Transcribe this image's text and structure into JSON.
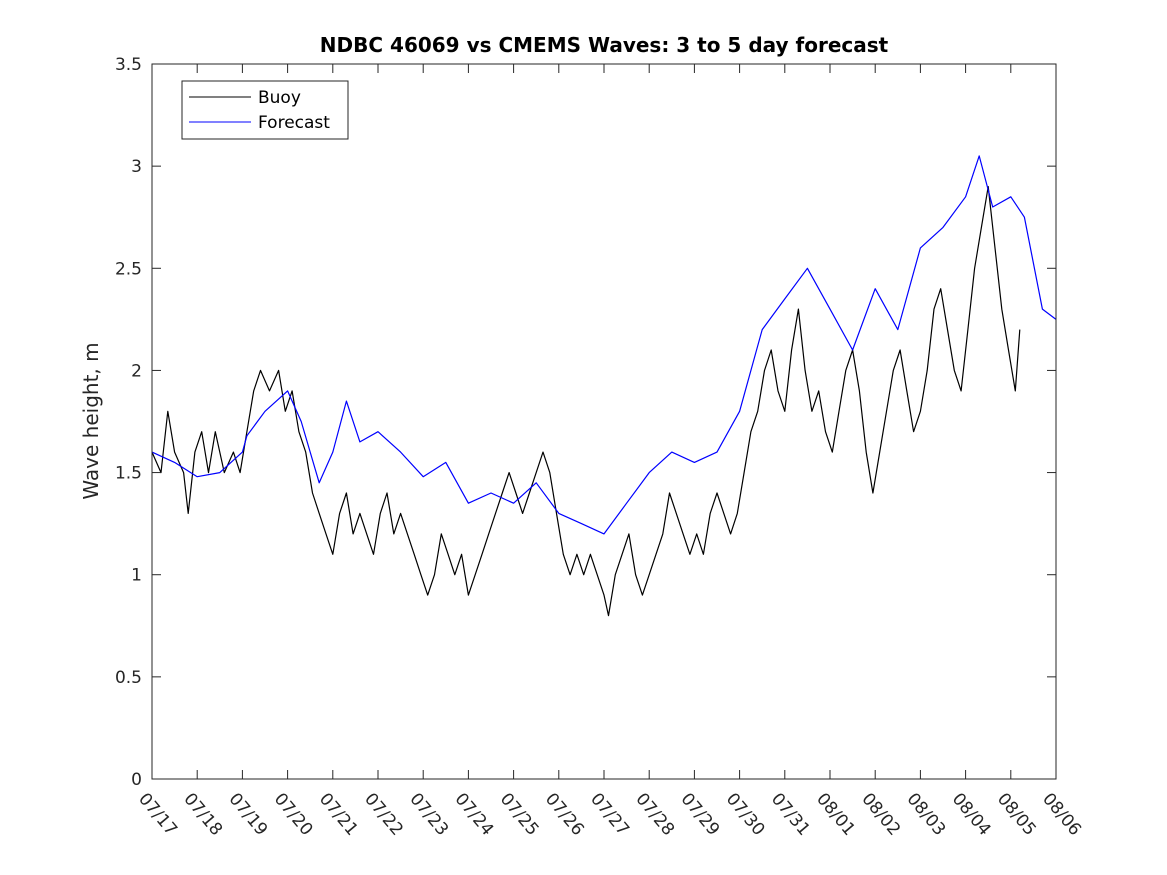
{
  "chart_data": {
    "type": "line",
    "title": "NDBC 46069 vs CMEMS Waves: 3 to 5 day forecast",
    "xlabel": "",
    "ylabel": "Wave height, m",
    "x_ticks": [
      "07/17",
      "07/18",
      "07/19",
      "07/20",
      "07/21",
      "07/22",
      "07/23",
      "07/24",
      "07/25",
      "07/26",
      "07/27",
      "07/28",
      "07/29",
      "07/30",
      "07/31",
      "08/01",
      "08/02",
      "08/03",
      "08/04",
      "08/05",
      "08/06"
    ],
    "y_ticks": [
      "0",
      "0.5",
      "1",
      "1.5",
      "2",
      "2.5",
      "3",
      "3.5"
    ],
    "xlim_days": [
      0,
      20
    ],
    "ylim": [
      0,
      3.5
    ],
    "grid": false,
    "legend": {
      "placement": "top-left",
      "entries": [
        {
          "name": "Buoy",
          "color": "#000000"
        },
        {
          "name": "Forecast",
          "color": "#0000ff"
        }
      ]
    },
    "series": [
      {
        "name": "Buoy",
        "color": "#000000",
        "points": [
          [
            0.0,
            1.6
          ],
          [
            0.2,
            1.5
          ],
          [
            0.35,
            1.8
          ],
          [
            0.5,
            1.6
          ],
          [
            0.7,
            1.5
          ],
          [
            0.8,
            1.3
          ],
          [
            0.95,
            1.6
          ],
          [
            1.1,
            1.7
          ],
          [
            1.25,
            1.5
          ],
          [
            1.4,
            1.7
          ],
          [
            1.6,
            1.5
          ],
          [
            1.8,
            1.6
          ],
          [
            1.95,
            1.5
          ],
          [
            2.1,
            1.7
          ],
          [
            2.25,
            1.9
          ],
          [
            2.4,
            2.0
          ],
          [
            2.6,
            1.9
          ],
          [
            2.8,
            2.0
          ],
          [
            2.95,
            1.8
          ],
          [
            3.1,
            1.9
          ],
          [
            3.25,
            1.7
          ],
          [
            3.4,
            1.6
          ],
          [
            3.55,
            1.4
          ],
          [
            3.7,
            1.3
          ],
          [
            3.85,
            1.2
          ],
          [
            4.0,
            1.1
          ],
          [
            4.15,
            1.3
          ],
          [
            4.3,
            1.4
          ],
          [
            4.45,
            1.2
          ],
          [
            4.6,
            1.3
          ],
          [
            4.75,
            1.2
          ],
          [
            4.9,
            1.1
          ],
          [
            5.05,
            1.3
          ],
          [
            5.2,
            1.4
          ],
          [
            5.35,
            1.2
          ],
          [
            5.5,
            1.3
          ],
          [
            5.65,
            1.2
          ],
          [
            5.8,
            1.1
          ],
          [
            5.95,
            1.0
          ],
          [
            6.1,
            0.9
          ],
          [
            6.25,
            1.0
          ],
          [
            6.4,
            1.2
          ],
          [
            6.55,
            1.1
          ],
          [
            6.7,
            1.0
          ],
          [
            6.85,
            1.1
          ],
          [
            7.0,
            0.9
          ],
          [
            7.15,
            1.0
          ],
          [
            7.3,
            1.1
          ],
          [
            7.45,
            1.2
          ],
          [
            7.6,
            1.3
          ],
          [
            7.75,
            1.4
          ],
          [
            7.9,
            1.5
          ],
          [
            8.05,
            1.4
          ],
          [
            8.2,
            1.3
          ],
          [
            8.35,
            1.4
          ],
          [
            8.5,
            1.5
          ],
          [
            8.65,
            1.6
          ],
          [
            8.8,
            1.5
          ],
          [
            8.95,
            1.3
          ],
          [
            9.1,
            1.1
          ],
          [
            9.25,
            1.0
          ],
          [
            9.4,
            1.1
          ],
          [
            9.55,
            1.0
          ],
          [
            9.7,
            1.1
          ],
          [
            9.85,
            1.0
          ],
          [
            10.0,
            0.9
          ],
          [
            10.1,
            0.8
          ],
          [
            10.25,
            1.0
          ],
          [
            10.4,
            1.1
          ],
          [
            10.55,
            1.2
          ],
          [
            10.7,
            1.0
          ],
          [
            10.85,
            0.9
          ],
          [
            11.0,
            1.0
          ],
          [
            11.15,
            1.1
          ],
          [
            11.3,
            1.2
          ],
          [
            11.45,
            1.4
          ],
          [
            11.6,
            1.3
          ],
          [
            11.75,
            1.2
          ],
          [
            11.9,
            1.1
          ],
          [
            12.05,
            1.2
          ],
          [
            12.2,
            1.1
          ],
          [
            12.35,
            1.3
          ],
          [
            12.5,
            1.4
          ],
          [
            12.65,
            1.3
          ],
          [
            12.8,
            1.2
          ],
          [
            12.95,
            1.3
          ],
          [
            13.1,
            1.5
          ],
          [
            13.25,
            1.7
          ],
          [
            13.4,
            1.8
          ],
          [
            13.55,
            2.0
          ],
          [
            13.7,
            2.1
          ],
          [
            13.85,
            1.9
          ],
          [
            14.0,
            1.8
          ],
          [
            14.15,
            2.1
          ],
          [
            14.3,
            2.3
          ],
          [
            14.45,
            2.0
          ],
          [
            14.6,
            1.8
          ],
          [
            14.75,
            1.9
          ],
          [
            14.9,
            1.7
          ],
          [
            15.05,
            1.6
          ],
          [
            15.2,
            1.8
          ],
          [
            15.35,
            2.0
          ],
          [
            15.5,
            2.1
          ],
          [
            15.65,
            1.9
          ],
          [
            15.8,
            1.6
          ],
          [
            15.95,
            1.4
          ],
          [
            16.1,
            1.6
          ],
          [
            16.25,
            1.8
          ],
          [
            16.4,
            2.0
          ],
          [
            16.55,
            2.1
          ],
          [
            16.7,
            1.9
          ],
          [
            16.85,
            1.7
          ],
          [
            17.0,
            1.8
          ],
          [
            17.15,
            2.0
          ],
          [
            17.3,
            2.3
          ],
          [
            17.45,
            2.4
          ],
          [
            17.6,
            2.2
          ],
          [
            17.75,
            2.0
          ],
          [
            17.9,
            1.9
          ],
          [
            18.05,
            2.2
          ],
          [
            18.2,
            2.5
          ],
          [
            18.35,
            2.7
          ],
          [
            18.5,
            2.9
          ],
          [
            18.65,
            2.6
          ],
          [
            18.8,
            2.3
          ],
          [
            18.95,
            2.1
          ],
          [
            19.1,
            1.9
          ],
          [
            19.2,
            2.2
          ]
        ]
      },
      {
        "name": "Forecast",
        "color": "#0000ff",
        "points": [
          [
            0.0,
            1.6
          ],
          [
            0.5,
            1.55
          ],
          [
            1.0,
            1.48
          ],
          [
            1.5,
            1.5
          ],
          [
            2.0,
            1.6
          ],
          [
            2.1,
            1.68
          ],
          [
            2.5,
            1.8
          ],
          [
            3.0,
            1.9
          ],
          [
            3.3,
            1.75
          ],
          [
            3.7,
            1.45
          ],
          [
            4.0,
            1.6
          ],
          [
            4.3,
            1.85
          ],
          [
            4.6,
            1.65
          ],
          [
            5.0,
            1.7
          ],
          [
            5.5,
            1.6
          ],
          [
            6.0,
            1.48
          ],
          [
            6.5,
            1.55
          ],
          [
            7.0,
            1.35
          ],
          [
            7.5,
            1.4
          ],
          [
            8.0,
            1.35
          ],
          [
            8.5,
            1.45
          ],
          [
            9.0,
            1.3
          ],
          [
            9.5,
            1.25
          ],
          [
            10.0,
            1.2
          ],
          [
            10.5,
            1.35
          ],
          [
            11.0,
            1.5
          ],
          [
            11.5,
            1.6
          ],
          [
            12.0,
            1.55
          ],
          [
            12.5,
            1.6
          ],
          [
            13.0,
            1.8
          ],
          [
            13.5,
            2.2
          ],
          [
            14.0,
            2.35
          ],
          [
            14.5,
            2.5
          ],
          [
            15.0,
            2.3
          ],
          [
            15.5,
            2.1
          ],
          [
            16.0,
            2.4
          ],
          [
            16.5,
            2.2
          ],
          [
            17.0,
            2.6
          ],
          [
            17.5,
            2.7
          ],
          [
            18.0,
            2.85
          ],
          [
            18.3,
            3.05
          ],
          [
            18.6,
            2.8
          ],
          [
            19.0,
            2.85
          ],
          [
            19.3,
            2.75
          ],
          [
            19.7,
            2.3
          ],
          [
            20.0,
            2.25
          ]
        ]
      }
    ]
  }
}
